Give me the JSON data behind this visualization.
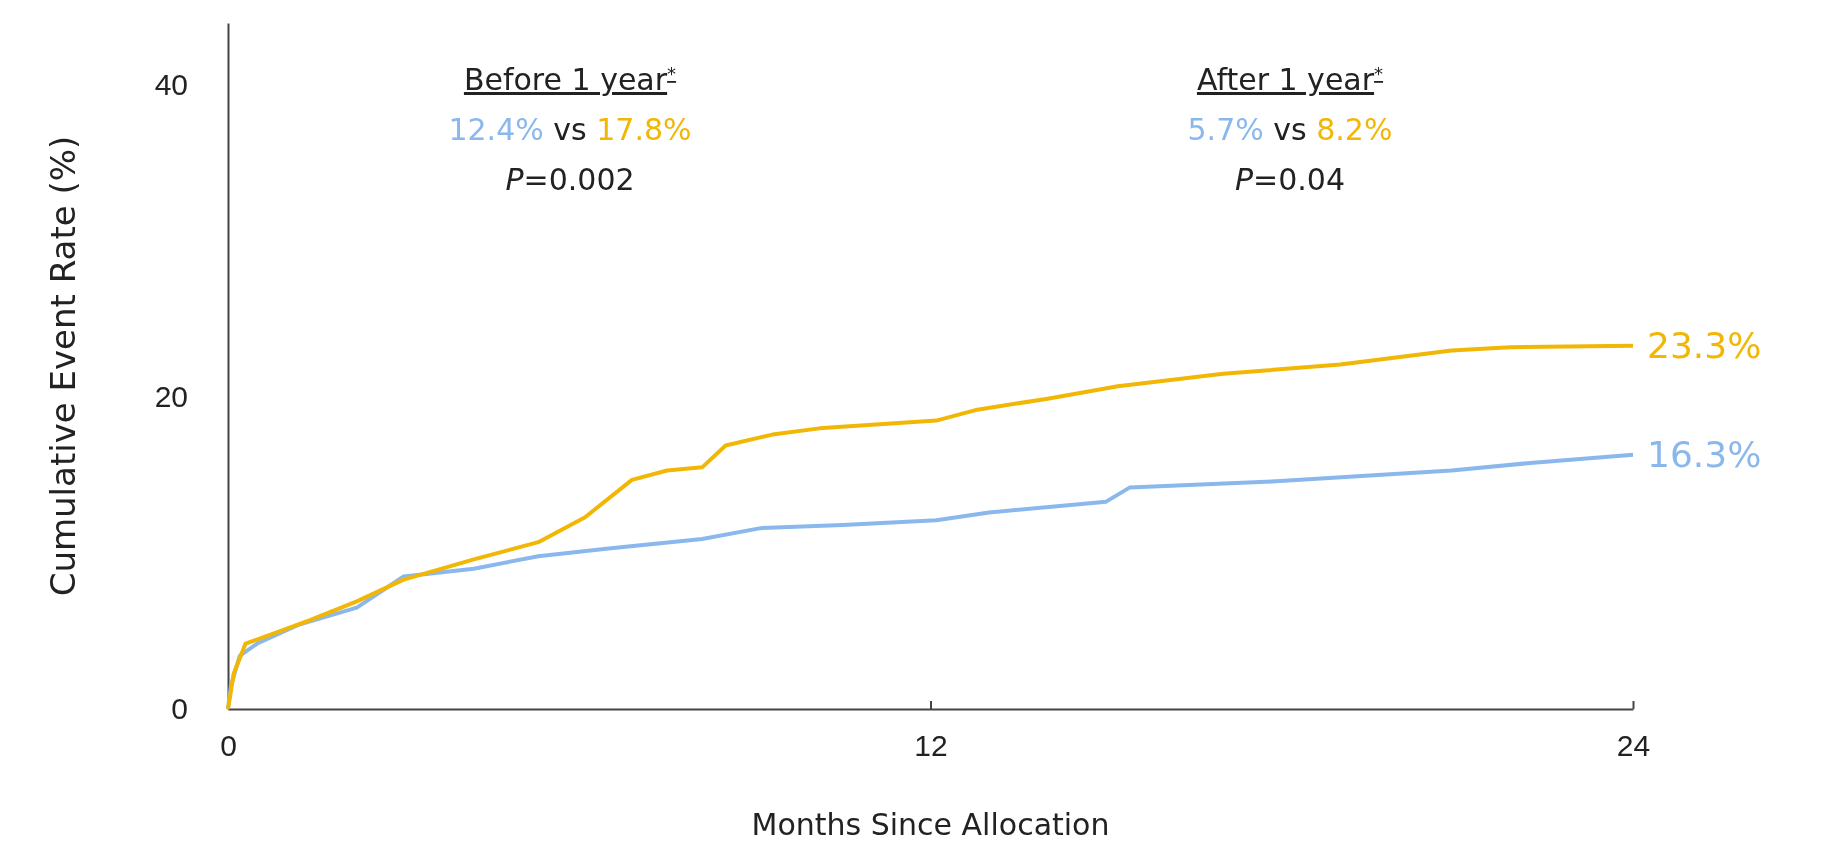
{
  "chart_data": {
    "type": "line",
    "xlabel": "Months Since Allocation",
    "ylabel": "Cumulative Event Rate (%)",
    "xlim": [
      0,
      24
    ],
    "ylim": [
      0,
      44
    ],
    "xticks": [
      0,
      12,
      24
    ],
    "yticks": [
      0,
      20,
      40
    ],
    "grid": false,
    "annotations": [
      "Before 1 year$^{*}$",
      "12.4% vs 17.8%",
      "P=0.002",
      "After 1 year$^{*}$",
      "5.7% vs 8.2%",
      "P=0.04"
    ],
    "series": [
      {
        "color": "#8ab8ec",
        "x": [
          0,
          0.05,
          0.2,
          0.5,
          1.2,
          2.2,
          3.0,
          4.2,
          5.3,
          6.5,
          8.1,
          9.1,
          10.5,
          12.1,
          13.0,
          15.0,
          15.4,
          17.9,
          20.9,
          22.3,
          24
        ],
        "values": [
          0,
          1.5,
          3.4,
          4.2,
          5.4,
          6.5,
          8.5,
          9.0,
          9.8,
          10.3,
          10.9,
          11.6,
          11.8,
          12.1,
          12.6,
          13.3,
          14.2,
          14.6,
          15.3,
          15.8,
          16.3
        ],
        "value_labels": [
          null,
          null,
          null,
          null,
          null,
          null,
          null,
          null,
          null,
          null,
          null,
          null,
          null,
          null,
          null,
          null,
          null,
          null,
          null,
          null,
          "16.3%"
        ]
      },
      {
        "color": "#f2b705",
        "x": [
          0,
          0.1,
          0.3,
          0.6,
          1.4,
          2.2,
          3.0,
          4.2,
          5.3,
          6.1,
          6.9,
          7.5,
          8.1,
          8.5,
          9.3,
          10.1,
          12.1,
          12.8,
          14.0,
          15.2,
          17.0,
          19.0,
          20.9,
          21.9,
          24
        ],
        "values": [
          0,
          2.3,
          4.2,
          4.6,
          5.7,
          6.9,
          8.3,
          9.6,
          10.7,
          12.3,
          14.7,
          15.3,
          15.5,
          16.9,
          17.6,
          18.0,
          18.5,
          19.2,
          19.9,
          20.7,
          21.5,
          22.1,
          23.0,
          23.2,
          23.3
        ],
        "value_labels": [
          null,
          null,
          null,
          null,
          null,
          null,
          null,
          null,
          null,
          null,
          null,
          null,
          null,
          null,
          null,
          null,
          null,
          null,
          null,
          null,
          null,
          null,
          null,
          null,
          "23.3%"
        ]
      }
    ]
  }
}
